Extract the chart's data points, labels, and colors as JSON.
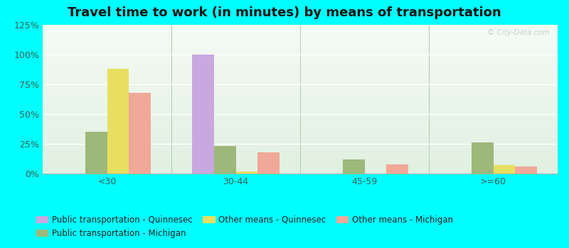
{
  "title": "Travel time to work (in minutes) by means of transportation",
  "categories": [
    "<30",
    "30-44",
    "45-59",
    ">=60"
  ],
  "series_order": [
    "Public transportation - Quinnesec",
    "Public transportation - Michigan",
    "Other means - Quinnesec",
    "Other means - Michigan"
  ],
  "series": {
    "Public transportation - Quinnesec": [
      0,
      100,
      0,
      0
    ],
    "Public transportation - Michigan": [
      35,
      23,
      12,
      26
    ],
    "Other means - Quinnesec": [
      88,
      2,
      0,
      7
    ],
    "Other means - Michigan": [
      68,
      18,
      8,
      6
    ]
  },
  "colors": {
    "Public transportation - Quinnesec": "#c9a8e0",
    "Public transportation - Michigan": "#9eb87a",
    "Other means - Quinnesec": "#e8df60",
    "Other means - Michigan": "#f0a898"
  },
  "ylim": [
    0,
    125
  ],
  "yticks": [
    0,
    25,
    50,
    75,
    100,
    125
  ],
  "ytick_labels": [
    "0%",
    "25%",
    "50%",
    "75%",
    "100%",
    "125%"
  ],
  "background_color": "#00ffff",
  "bar_width": 0.17,
  "title_fontsize": 13,
  "tick_fontsize": 9,
  "legend_fontsize": 8.5
}
